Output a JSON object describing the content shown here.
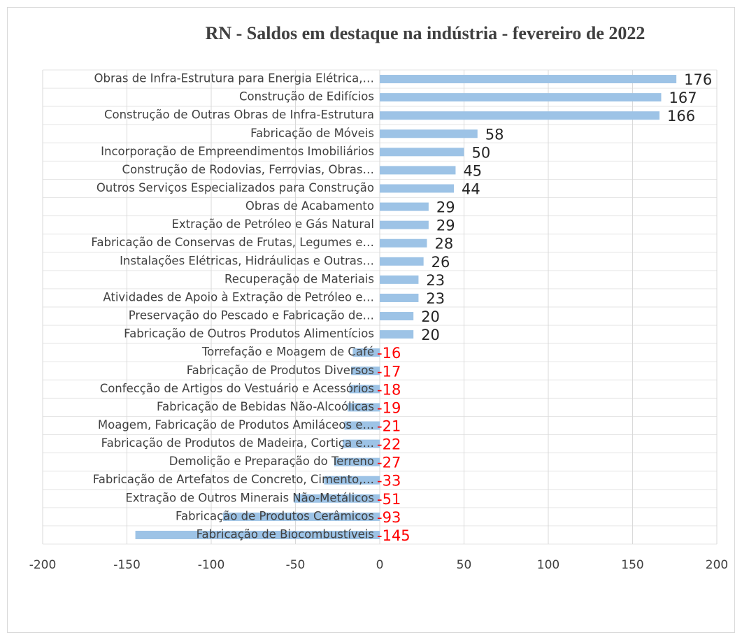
{
  "chart_data": {
    "type": "hbar",
    "title": "RN - Saldos em destaque na indústria - fevereiro de 2022",
    "categories": [
      "Obras de Infra-Estrutura para Energia Elétrica,…",
      "Construção de Edifícios",
      "Construção de Outras Obras de Infra-Estrutura",
      "Fabricação de Móveis",
      "Incorporação de Empreendimentos Imobiliários",
      "Construção de Rodovias, Ferrovias, Obras…",
      "Outros Serviços Especializados para Construção",
      "Obras de Acabamento",
      "Extração de Petróleo e Gás Natural",
      "Fabricação de Conservas de Frutas, Legumes e…",
      "Instalações Elétricas, Hidráulicas e Outras…",
      "Recuperação de Materiais",
      "Atividades de Apoio à Extração de Petróleo e…",
      "Preservação do Pescado e Fabricação de…",
      "Fabricação de Outros Produtos Alimentícios",
      "Torrefação e Moagem de Café",
      "Fabricação de Produtos Diversos",
      "Confecção de Artigos do Vestuário e Acessórios",
      "Fabricação de Bebidas Não-Alcoólicas",
      "Moagem, Fabricação de Produtos Amiláceos e…",
      "Fabricação de Produtos de Madeira, Cortiça e…",
      "Demolição e Preparação do Terreno",
      "Fabricação de Artefatos de Concreto, Cimento,…",
      "Extração de Outros Minerais Não-Metálicos",
      "Fabricação de Produtos Cerâmicos",
      "Fabricação de Biocombustíveis"
    ],
    "values": [
      176,
      167,
      166,
      58,
      50,
      45,
      44,
      29,
      29,
      28,
      26,
      23,
      23,
      20,
      20,
      -16,
      -17,
      -18,
      -19,
      -21,
      -22,
      -27,
      -33,
      -51,
      -93,
      -145
    ],
    "color": "#9dc3e6",
    "positive_label_color": "#262626",
    "negative_label_color": "#ff0000",
    "xlim": [
      -200,
      200
    ],
    "xticks": [
      -200,
      -150,
      -100,
      -50,
      0,
      50,
      100,
      150,
      200
    ],
    "grid": true
  }
}
